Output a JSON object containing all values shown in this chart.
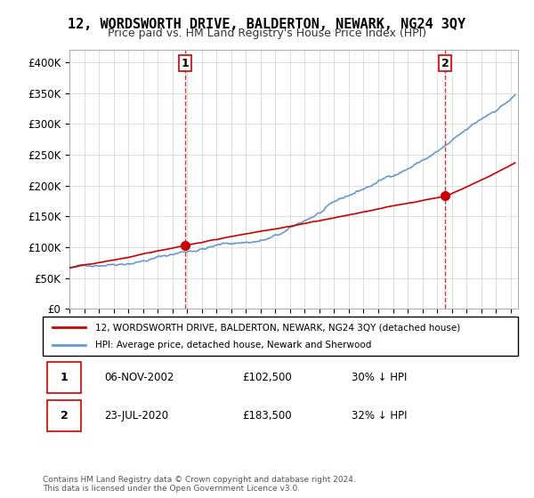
{
  "title": "12, WORDSWORTH DRIVE, BALDERTON, NEWARK, NG24 3QY",
  "subtitle": "Price paid vs. HM Land Registry's House Price Index (HPI)",
  "ylabel_ticks": [
    "£0",
    "£50K",
    "£100K",
    "£150K",
    "£200K",
    "£250K",
    "£300K",
    "£350K",
    "£400K"
  ],
  "ytick_values": [
    0,
    50000,
    100000,
    150000,
    200000,
    250000,
    300000,
    350000,
    400000
  ],
  "ylim": [
    0,
    420000
  ],
  "xlim_start": 1995.0,
  "xlim_end": 2025.5,
  "hpi_color": "#6699cc",
  "price_color": "#cc0000",
  "marker_color": "#cc0000",
  "dashed_line_color": "#cc0000",
  "transaction1": {
    "date_num": 2002.85,
    "price": 102500,
    "label": "1"
  },
  "transaction2": {
    "date_num": 2020.55,
    "price": 183500,
    "label": "2"
  },
  "legend_house_label": "12, WORDSWORTH DRIVE, BALDERTON, NEWARK, NG24 3QY (detached house)",
  "legend_hpi_label": "HPI: Average price, detached house, Newark and Sherwood",
  "table_row1": [
    "1",
    "06-NOV-2002",
    "£102,500",
    "30% ↓ HPI"
  ],
  "table_row2": [
    "2",
    "23-JUL-2020",
    "£183,500",
    "32% ↓ HPI"
  ],
  "footnote": "Contains HM Land Registry data © Crown copyright and database right 2024.\nThis data is licensed under the Open Government Licence v3.0.",
  "background_color": "#ffffff",
  "grid_color": "#dddddd"
}
